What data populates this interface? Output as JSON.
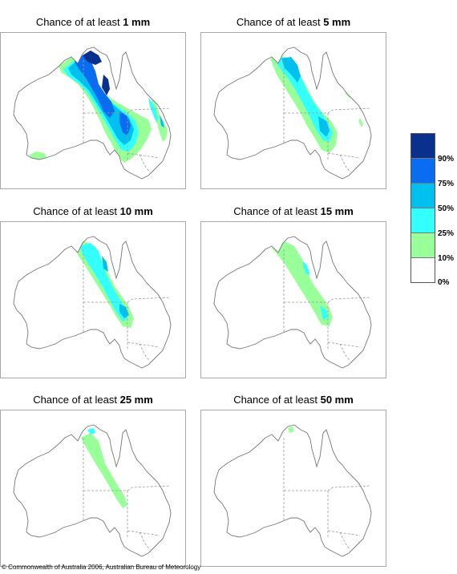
{
  "panels": [
    {
      "prefix": "Chance of at least ",
      "amount": "1 mm",
      "level": 0
    },
    {
      "prefix": "Chance of at least ",
      "amount": "5 mm",
      "level": 1
    },
    {
      "prefix": "Chance of at least ",
      "amount": "10 mm",
      "level": 2
    },
    {
      "prefix": "Chance of at least ",
      "amount": "15 mm",
      "level": 3
    },
    {
      "prefix": "Chance of at least ",
      "amount": "25 mm",
      "level": 4
    },
    {
      "prefix": "Chance of at least ",
      "amount": "50 mm",
      "level": 5
    }
  ],
  "legend": {
    "colors": [
      "#08308c",
      "#0a6cf0",
      "#00c0f0",
      "#33ffff",
      "#99ff99",
      "#ffffff"
    ],
    "labels": [
      "90%",
      "75%",
      "50%",
      "25%",
      "10%",
      "0%"
    ]
  },
  "colors": {
    "coastline": "#777777",
    "state_border": "#999999",
    "panel_border": "#a8a8a8"
  },
  "copyright": "© Commonwealth of Australia 2006, Australian Bureau of Meteorology"
}
